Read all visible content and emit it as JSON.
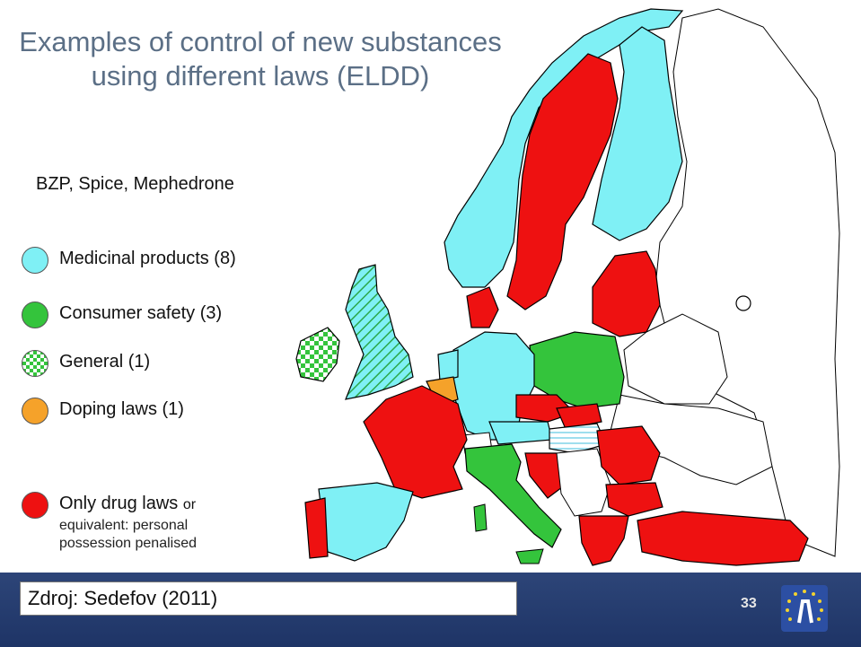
{
  "title": "Examples of control of new substances using different laws (ELDD)",
  "subtitle": "BZP, Spice, Mephedrone",
  "legend": [
    {
      "label": "Medicinal products (8)",
      "color": "#7ff0f5"
    },
    {
      "label": "Consumer safety (3)",
      "color": "#34c43c"
    },
    {
      "label": "General (1)",
      "color": "#34c43c"
    },
    {
      "label": "Doping laws (1)",
      "color": "#f5a22a"
    },
    {
      "label": "Only drug laws",
      "suffix": "or",
      "sublabel": "equivalent: personal possession penalised",
      "color": "#ee1111"
    }
  ],
  "source": "Zdroj: Sedefov (2011)",
  "page_number": "33"
}
